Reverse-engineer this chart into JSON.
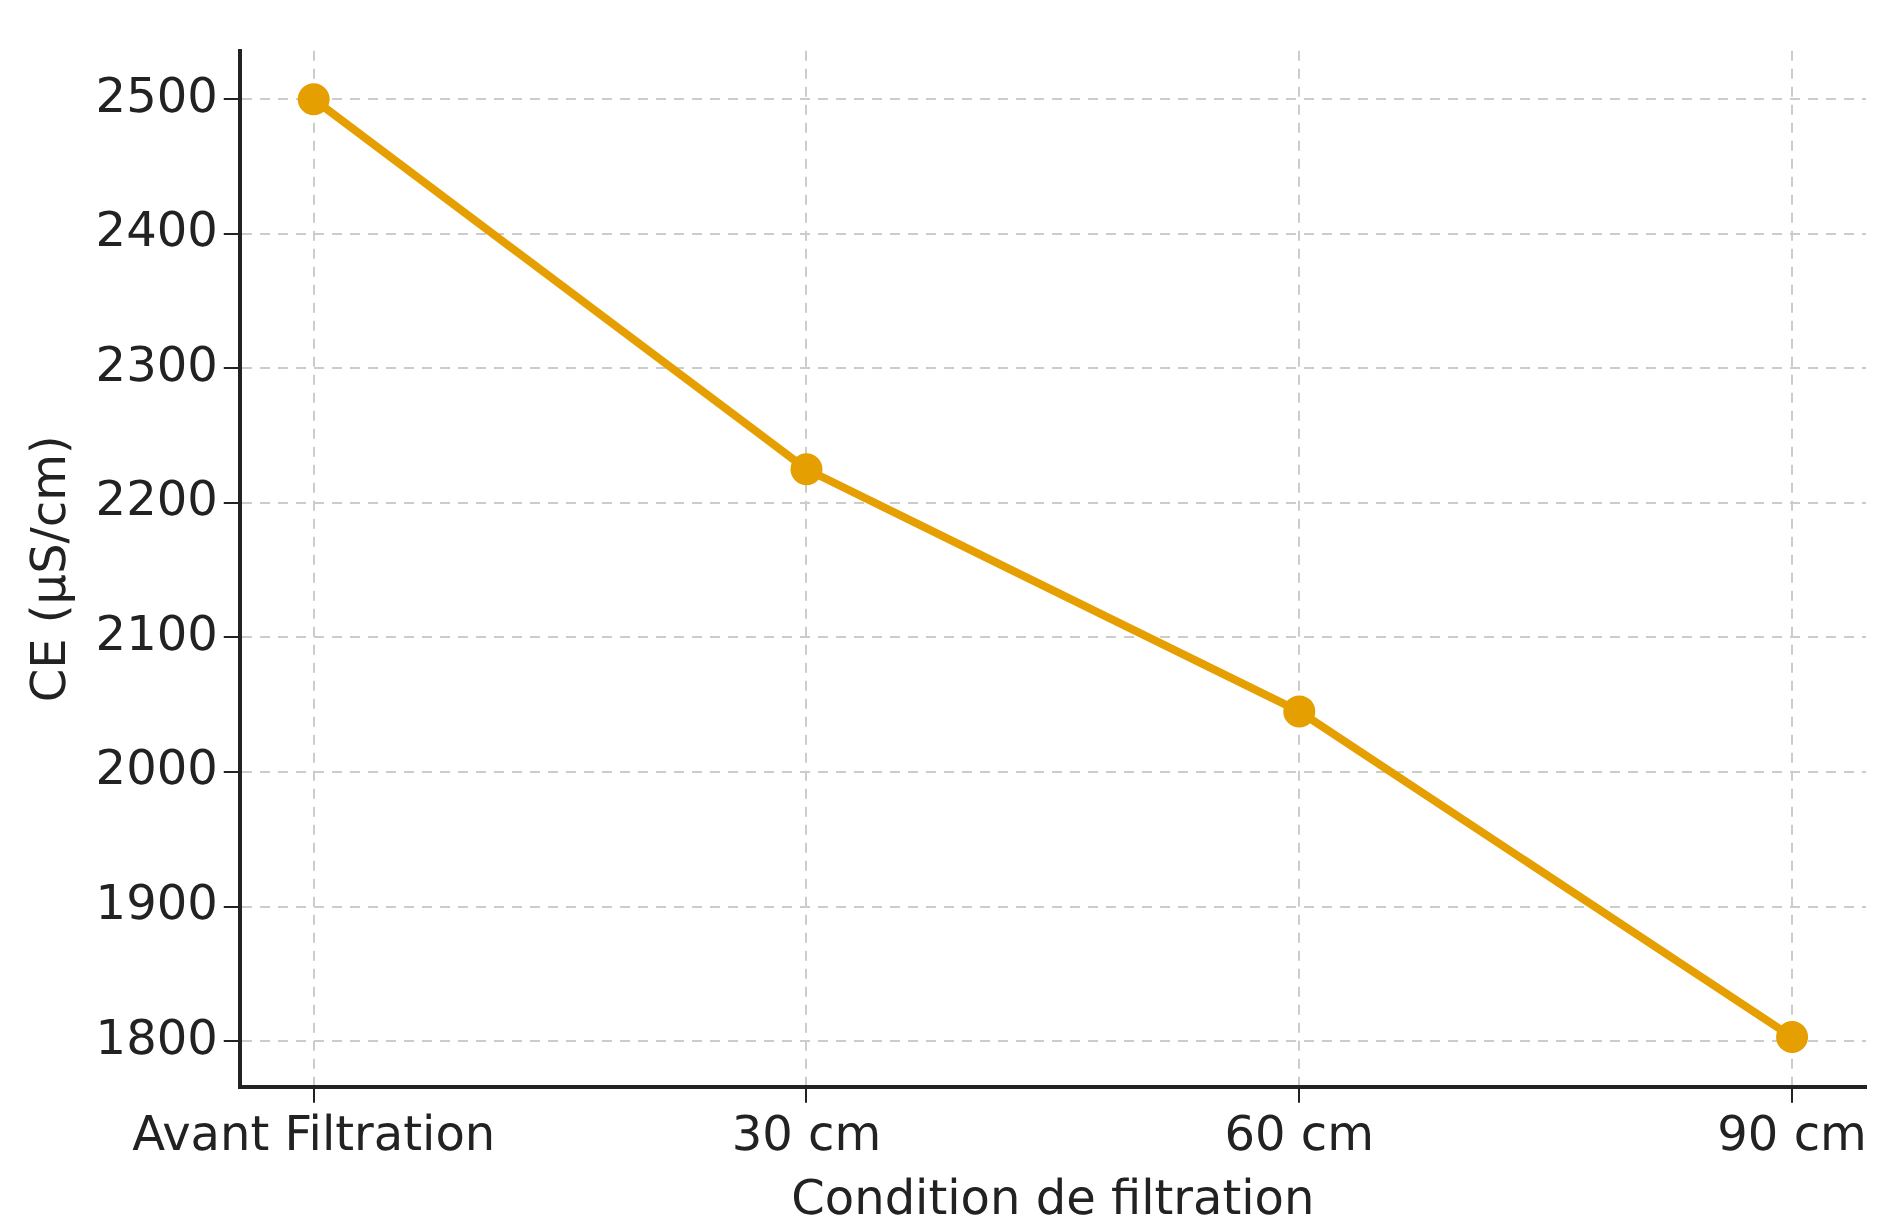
{
  "chart_data": {
    "type": "line",
    "xlabel": "Condition de filtration",
    "ylabel": "CE (µS/cm)",
    "categories": [
      "Avant Filtration",
      "30 cm",
      "60 cm",
      "90 cm"
    ],
    "series": [
      {
        "color": "#e69f00",
        "values": [
          2500,
          2225,
          2045,
          1803
        ]
      }
    ],
    "ylim": [
      1766,
      2536
    ],
    "yticks": [
      1800,
      1900,
      2000,
      2100,
      2200,
      2300,
      2400,
      2500
    ],
    "grid": true,
    "marker": "circle",
    "line_style": "solid"
  }
}
